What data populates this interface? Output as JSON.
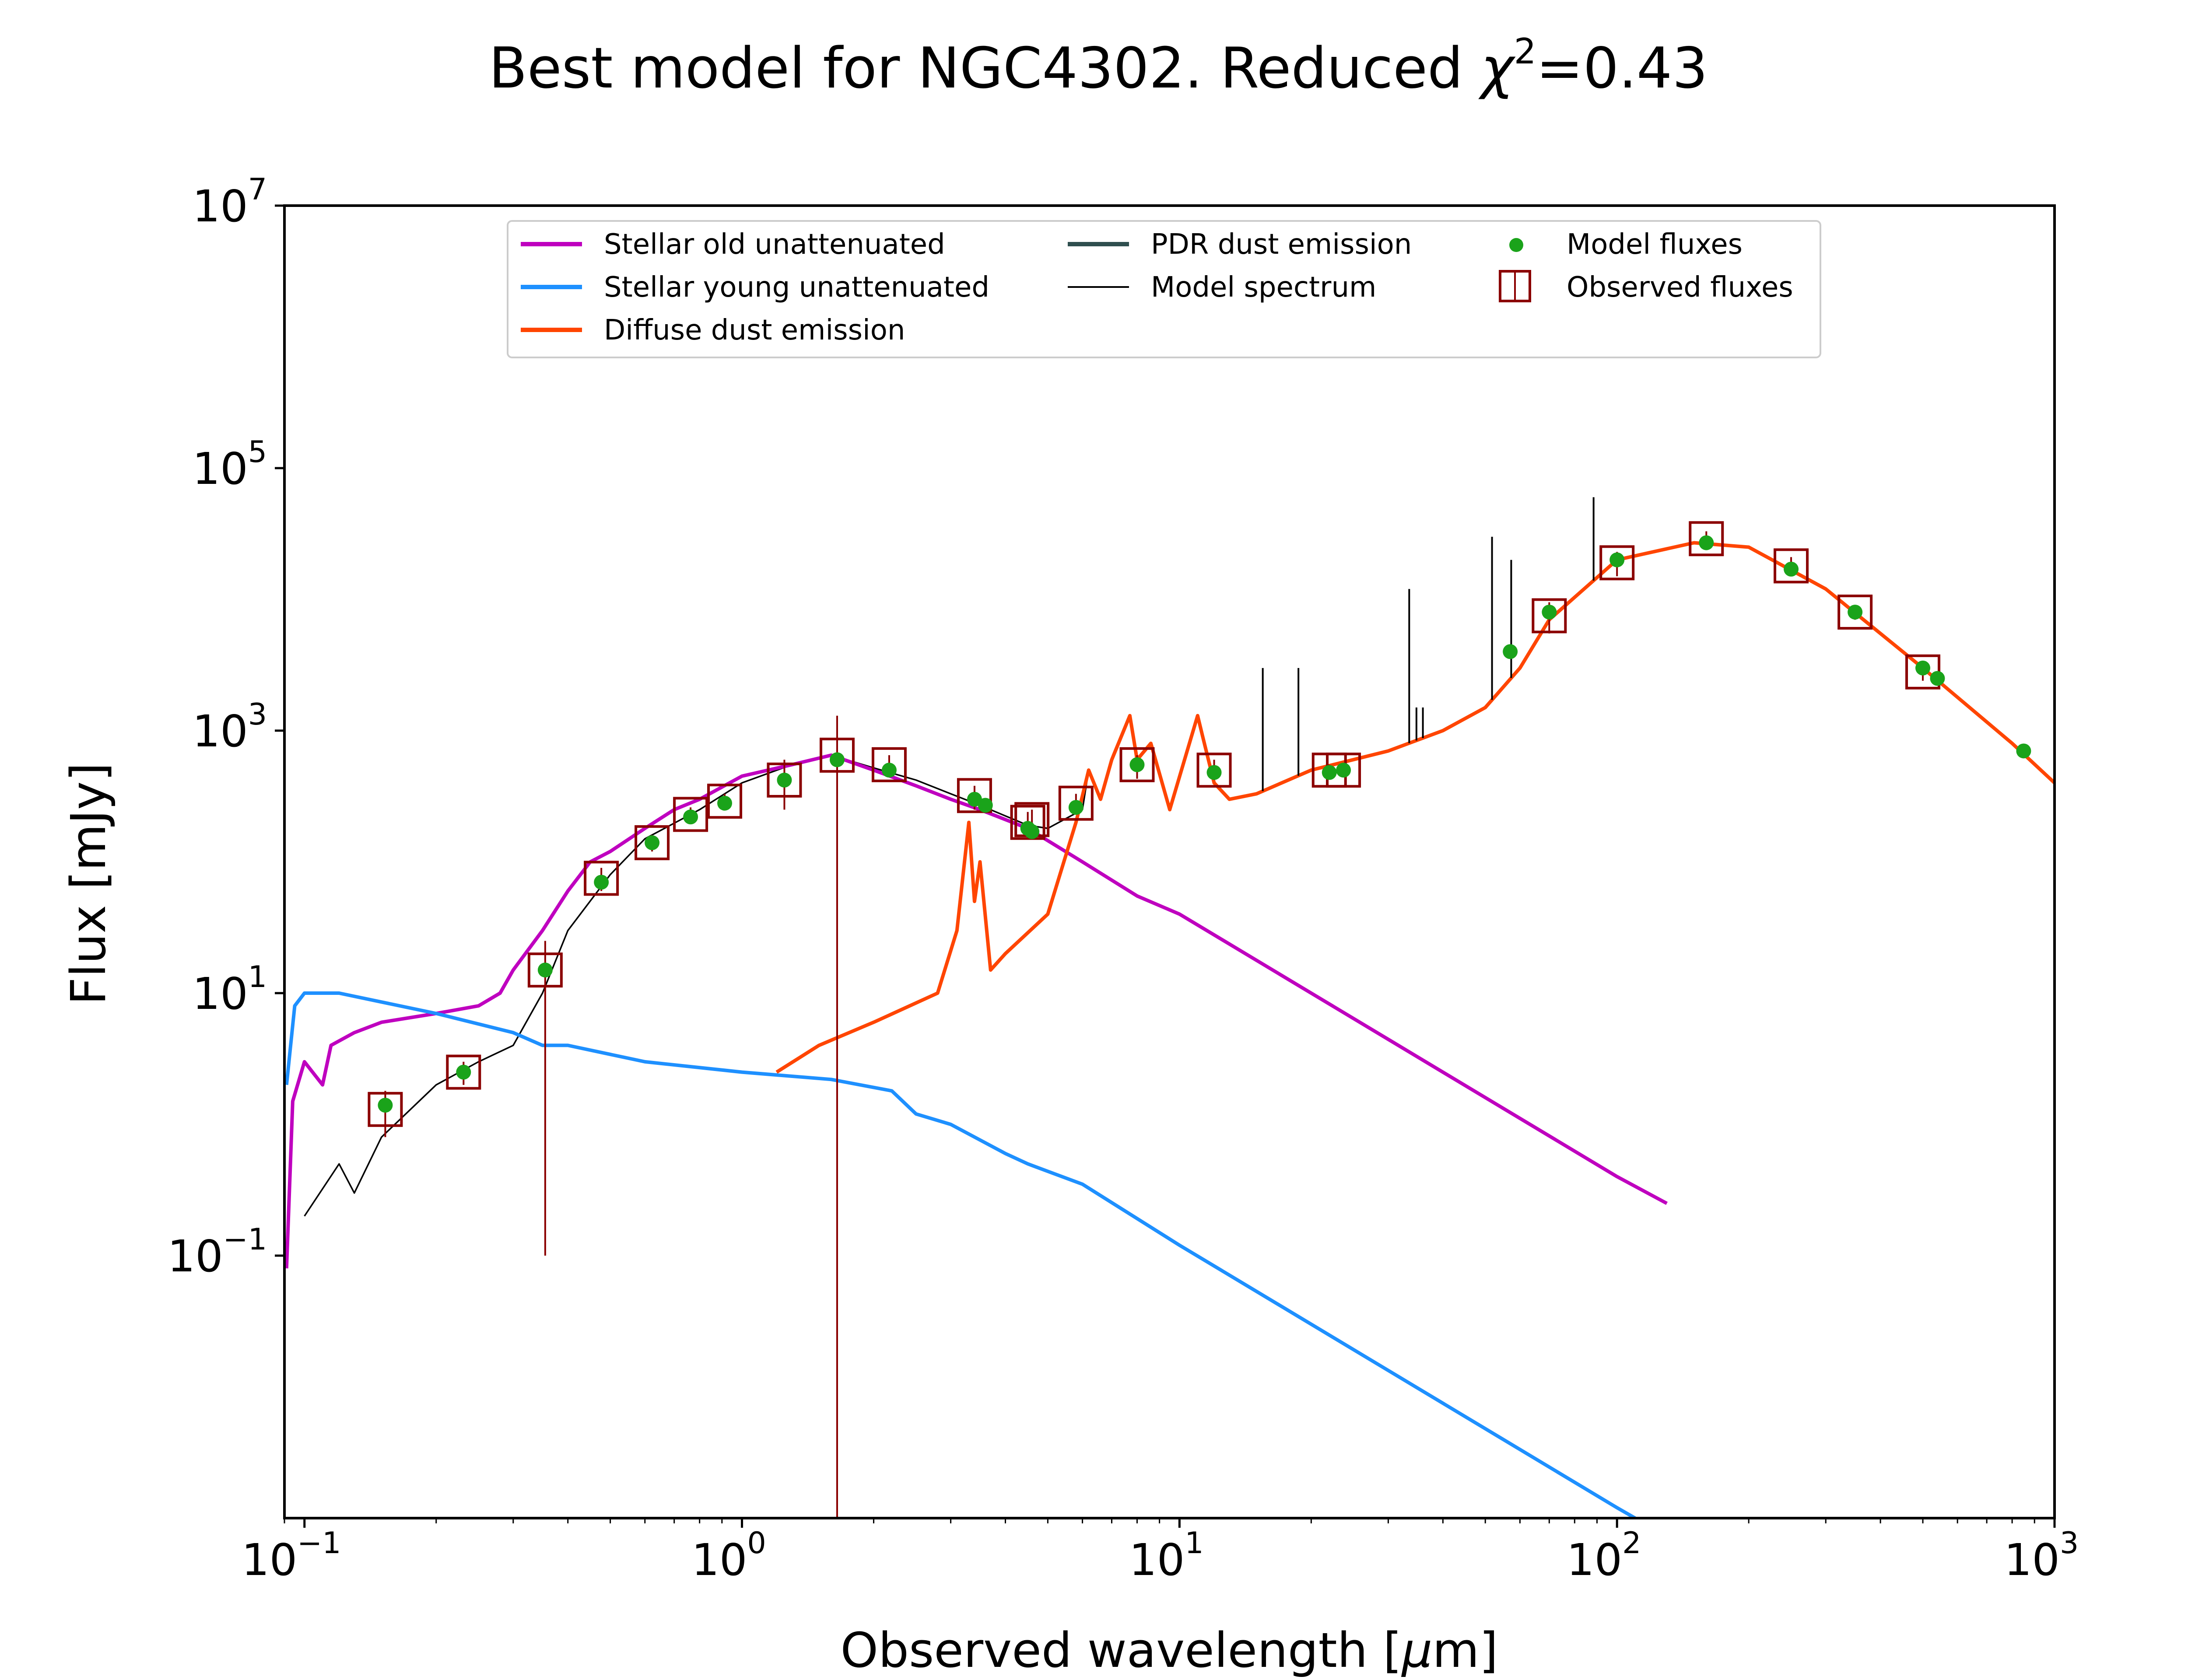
{
  "chart_data": {
    "type": "line",
    "title_main": "Best model for NGC4302. Reduced ",
    "title_chi": "χ",
    "title_sup": "2",
    "title_tail": "=0.43",
    "xlabel_main": "Observed wavelength [",
    "xlabel_mu": "μ",
    "xlabel_tail": "m]",
    "ylabel": "Flux [mJy]",
    "xscale": "log",
    "yscale": "log",
    "xlim": [
      0.09,
      1000
    ],
    "ylim": [
      0.001,
      10000000
    ],
    "x_ticks": [
      {
        "base": "10",
        "exp": "−1",
        "value": 0.1
      },
      {
        "base": "10",
        "exp": "0",
        "value": 1
      },
      {
        "base": "10",
        "exp": "1",
        "value": 10
      },
      {
        "base": "10",
        "exp": "2",
        "value": 100
      },
      {
        "base": "10",
        "exp": "3",
        "value": 1000
      }
    ],
    "y_ticks": [
      {
        "base": "10",
        "exp": "−1",
        "value": 0.1
      },
      {
        "base": "10",
        "exp": "1",
        "value": 10
      },
      {
        "base": "10",
        "exp": "3",
        "value": 1000
      },
      {
        "base": "10",
        "exp": "5",
        "value": 100000
      },
      {
        "base": "10",
        "exp": "7",
        "value": 10000000
      }
    ],
    "legend_position": "top-center",
    "series": [
      {
        "name": "Stellar old unattenuated",
        "color": "#bf00bf",
        "x": [
          0.091,
          0.094,
          0.1,
          0.11,
          0.115,
          0.13,
          0.15,
          0.2,
          0.25,
          0.28,
          0.3,
          0.35,
          0.4,
          0.45,
          0.5,
          0.6,
          0.7,
          0.8,
          1.0,
          1.3,
          1.6,
          2.0,
          2.5,
          3.0,
          3.5,
          4.5,
          6.0,
          8.0,
          10.0,
          100.0,
          130.0
        ],
        "y": [
          0.08,
          1.5,
          3.0,
          2.0,
          4.0,
          5.0,
          6.0,
          7.0,
          8.0,
          10.0,
          15.0,
          30.0,
          60.0,
          100.0,
          120.0,
          180.0,
          250.0,
          300.0,
          450.0,
          550.0,
          650.0,
          500.0,
          380.0,
          300.0,
          250.0,
          180.0,
          100.0,
          55.0,
          40.0,
          0.4,
          0.25
        ]
      },
      {
        "name": "Stellar young unattenuated",
        "color": "#1e90ff",
        "x": [
          0.091,
          0.095,
          0.1,
          0.12,
          0.2,
          0.3,
          0.35,
          0.4,
          0.6,
          1.0,
          1.6,
          2.2,
          2.5,
          3.0,
          4.0,
          4.5,
          6.0,
          10.0,
          100.0,
          110.0
        ],
        "y": [
          2.0,
          8.0,
          10.0,
          10.0,
          7.0,
          5.0,
          4.0,
          4.0,
          3.0,
          2.5,
          2.2,
          1.8,
          1.2,
          1.0,
          0.6,
          0.5,
          0.35,
          0.12,
          0.0012,
          0.001
        ]
      },
      {
        "name": "Diffuse dust emission",
        "color": "#ff4500",
        "x": [
          1.2,
          1.5,
          2.0,
          2.8,
          3.1,
          3.3,
          3.4,
          3.5,
          3.7,
          4.0,
          5.0,
          5.8,
          6.2,
          6.6,
          7.0,
          7.7,
          8.0,
          8.6,
          9.5,
          11.0,
          11.3,
          12.0,
          13.0,
          15.0,
          20.0,
          30.0,
          40.0,
          50.0,
          60.0,
          70.0,
          100.0,
          150.0,
          200.0,
          300.0,
          500.0,
          800.0,
          1000.0
        ],
        "y": [
          2.5,
          4.0,
          6.0,
          10.0,
          30.0,
          200.0,
          50.0,
          100.0,
          15.0,
          20.0,
          40.0,
          200.0,
          500.0,
          300.0,
          600.0,
          1300.0,
          600.0,
          800.0,
          250.0,
          1300.0,
          900.0,
          400.0,
          300.0,
          330.0,
          500.0,
          700.0,
          1000.0,
          1500.0,
          3000.0,
          7000.0,
          20000.0,
          27000.0,
          25000.0,
          12000.0,
          3000.0,
          800.0,
          400.0
        ]
      },
      {
        "name": "PDR dust emission",
        "color": "#2f4f4f",
        "x": [],
        "y": []
      },
      {
        "name": "Model spectrum",
        "color": "#000000",
        "x": [
          0.1,
          0.12,
          0.13,
          0.15,
          0.2,
          0.25,
          0.3,
          0.35,
          0.4,
          0.5,
          0.6,
          0.8,
          1.0,
          1.3,
          1.6,
          2.0,
          2.5,
          3.0,
          3.5,
          4.5,
          5.0,
          6.0,
          6.2,
          6.6,
          7.0,
          7.7,
          8.0,
          8.6,
          9.5,
          11.0,
          11.3,
          12.0,
          13.0,
          15.0,
          20.0,
          30.0,
          40.0,
          50.0,
          60.0,
          70.0,
          100.0,
          150.0,
          200.0,
          300.0,
          500.0,
          800.0,
          1000.0
        ],
        "y": [
          0.2,
          0.5,
          0.3,
          0.8,
          2.0,
          3.0,
          4.0,
          10.0,
          30.0,
          80.0,
          150.0,
          250.0,
          400.0,
          550.0,
          650.0,
          520.0,
          420.0,
          330.0,
          270.0,
          190.0,
          180.0,
          250.0,
          500.0,
          300.0,
          600.0,
          1300.0,
          600.0,
          800.0,
          250.0,
          1300.0,
          900.0,
          400.0,
          300.0,
          330.0,
          500.0,
          700.0,
          1000.0,
          1500.0,
          3000.0,
          7000.0,
          20000.0,
          27000.0,
          25000.0,
          12000.0,
          3000.0,
          800.0,
          400.0
        ]
      }
    ],
    "model_spectrum_lines": [
      {
        "x": 15.5,
        "y": 3000
      },
      {
        "x": 18.7,
        "y": 3000
      },
      {
        "x": 33.5,
        "y": 12000
      },
      {
        "x": 34.8,
        "y": 1500
      },
      {
        "x": 36.0,
        "y": 1500
      },
      {
        "x": 51.8,
        "y": 30000
      },
      {
        "x": 57.3,
        "y": 20000
      },
      {
        "x": 88.4,
        "y": 60000
      }
    ],
    "model_fluxes": {
      "name": "Model fluxes",
      "color": "#1aa31a",
      "x": [
        0.153,
        0.231,
        0.355,
        0.477,
        0.623,
        0.763,
        0.913,
        1.25,
        1.65,
        2.17,
        3.4,
        3.6,
        4.5,
        4.6,
        5.8,
        8.0,
        12.0,
        22.0,
        23.7,
        57.0,
        70.0,
        100.0,
        160.0,
        250.0,
        350.0,
        500.0,
        540.0,
        850.0
      ],
      "y": [
        1.4,
        2.5,
        15.0,
        70.0,
        140.0,
        220.0,
        280.0,
        420.0,
        600.0,
        500.0,
        300.0,
        270.0,
        180.0,
        170.0,
        260.0,
        550.0,
        480.0,
        480.0,
        500.0,
        4000.0,
        8000.0,
        20000.0,
        27000.0,
        17000.0,
        8000.0,
        3000.0,
        2500.0,
        700.0
      ]
    },
    "observed_fluxes": {
      "name": "Observed fluxes",
      "color": "#8b0000",
      "x": [
        0.153,
        0.231,
        0.355,
        0.477,
        0.623,
        0.763,
        0.913,
        1.25,
        1.65,
        2.17,
        3.4,
        4.5,
        4.6,
        5.8,
        8.0,
        12.0,
        22.0,
        23.7,
        70.0,
        100.0,
        160.0,
        250.0,
        350.0,
        500.0
      ],
      "y": [
        1.3,
        2.5,
        15.0,
        75.0,
        140.0,
        230.0,
        290.0,
        420.0,
        650.0,
        550.0,
        320.0,
        200.0,
        210.0,
        280.0,
        550.0,
        500.0,
        500.0,
        500.0,
        7500.0,
        19000.0,
        29000.0,
        18000.0,
        8000.0,
        2800.0
      ],
      "err_low": [
        0.8,
        2.0,
        0.1,
        60.0,
        120.0,
        200.0,
        250.0,
        250.0,
        0.001,
        450.0,
        250.0,
        160.0,
        170.0,
        230.0,
        430.0,
        420.0,
        450.0,
        450.0,
        5500.0,
        15000.0,
        25000.0,
        15000.0,
        7000.0,
        2400.0
      ],
      "err_high": [
        1.8,
        3.0,
        25.0,
        90.0,
        160.0,
        260.0,
        330.0,
        600.0,
        1300.0,
        650.0,
        380.0,
        240.0,
        250.0,
        330.0,
        650.0,
        600.0,
        550.0,
        550.0,
        9500.0,
        23000.0,
        33000.0,
        21000.0,
        9000.0,
        3200.0
      ]
    }
  }
}
